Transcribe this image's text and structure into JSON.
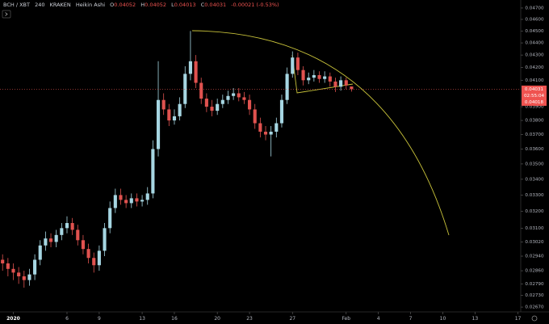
{
  "header": {
    "symbol": "BCH / XBT",
    "interval": "240",
    "exchange": "KRAKEN",
    "style": "Heikin Ashi",
    "ohlc": [
      {
        "label": "O",
        "value": "0.04052"
      },
      {
        "label": "H",
        "value": "0.04052"
      },
      {
        "label": "L",
        "value": "0.04013"
      },
      {
        "label": "C",
        "value": "0.04031"
      }
    ],
    "change": "-0.00021 (-0.53%)"
  },
  "chart_data": {
    "type": "candlestick",
    "log_scale": true,
    "up_color": "#a6d6e2",
    "down_color": "#e0524f",
    "annotation_color": "#c8c23a",
    "x": [
      0,
      0.5,
      1,
      1.5,
      2,
      2.5,
      3,
      3.5,
      4,
      4.5,
      5,
      5.5,
      6,
      6.5,
      7,
      7.5,
      8,
      8.5,
      9,
      9.5,
      10,
      10.5,
      11,
      11.5,
      12,
      12.5,
      13,
      13.5,
      14,
      14.5,
      15,
      15.5,
      16,
      16.5,
      17,
      17.5,
      18,
      18.5,
      19,
      19.5,
      20,
      20.5,
      21,
      21.5,
      22,
      22.5,
      23,
      23.5,
      24,
      24.5,
      25,
      25.5,
      26,
      26.5,
      27,
      27.5,
      28,
      28.5,
      29,
      29.5,
      30,
      30.5,
      31,
      31.5,
      32,
      32.5
    ],
    "open": [
      0.0292,
      0.029,
      0.0287,
      0.0285,
      0.0283,
      0.0281,
      0.0284,
      0.0292,
      0.03,
      0.0304,
      0.0302,
      0.0306,
      0.031,
      0.0313,
      0.0309,
      0.0303,
      0.0298,
      0.0293,
      0.0289,
      0.0297,
      0.031,
      0.0322,
      0.033,
      0.0327,
      0.0325,
      0.0328,
      0.0326,
      0.0327,
      0.0331,
      0.036,
      0.0395,
      0.0388,
      0.038,
      0.0383,
      0.0392,
      0.0415,
      0.0425,
      0.0408,
      0.0396,
      0.039,
      0.0387,
      0.0392,
      0.0395,
      0.0398,
      0.04,
      0.0397,
      0.0395,
      0.0388,
      0.0378,
      0.0372,
      0.037,
      0.0372,
      0.0378,
      0.0395,
      0.0415,
      0.0428,
      0.0418,
      0.041,
      0.0412,
      0.0414,
      0.0411,
      0.0413,
      0.0409,
      0.0405,
      0.041,
      0.04052
    ],
    "high": [
      0.0295,
      0.0293,
      0.029,
      0.0288,
      0.0286,
      0.0287,
      0.0295,
      0.0303,
      0.0308,
      0.0307,
      0.0309,
      0.0313,
      0.0317,
      0.0316,
      0.0312,
      0.0306,
      0.0301,
      0.0296,
      0.03,
      0.0313,
      0.0326,
      0.0334,
      0.0334,
      0.033,
      0.0331,
      0.0331,
      0.033,
      0.0335,
      0.0366,
      0.0425,
      0.04,
      0.0392,
      0.0388,
      0.0397,
      0.0421,
      0.045,
      0.043,
      0.0412,
      0.04,
      0.0395,
      0.0396,
      0.0399,
      0.0402,
      0.0404,
      0.0404,
      0.0401,
      0.0399,
      0.0392,
      0.0382,
      0.0376,
      0.0376,
      0.0382,
      0.0399,
      0.042,
      0.0433,
      0.0432,
      0.0421,
      0.0416,
      0.0418,
      0.0417,
      0.0417,
      0.0416,
      0.0412,
      0.0413,
      0.0412,
      0.04052
    ],
    "low": [
      0.0286,
      0.0283,
      0.0281,
      0.0279,
      0.0277,
      0.0278,
      0.0281,
      0.0289,
      0.0297,
      0.0299,
      0.0299,
      0.0303,
      0.0307,
      0.0306,
      0.03,
      0.0295,
      0.029,
      0.0285,
      0.0286,
      0.0294,
      0.0307,
      0.0319,
      0.0324,
      0.0322,
      0.0322,
      0.0323,
      0.0323,
      0.0324,
      0.0328,
      0.0355,
      0.0384,
      0.0376,
      0.0377,
      0.038,
      0.0389,
      0.041,
      0.0404,
      0.0392,
      0.0386,
      0.0383,
      0.0384,
      0.0389,
      0.0392,
      0.0395,
      0.0394,
      0.0392,
      0.0384,
      0.0374,
      0.0368,
      0.0366,
      0.0355,
      0.0368,
      0.0375,
      0.0392,
      0.0412,
      0.0414,
      0.0406,
      0.0407,
      0.0409,
      0.0408,
      0.0408,
      0.0405,
      0.0401,
      0.0402,
      0.0403,
      0.04013
    ],
    "close": [
      0.029,
      0.0287,
      0.0285,
      0.0283,
      0.0281,
      0.0284,
      0.0292,
      0.03,
      0.0304,
      0.0302,
      0.0306,
      0.031,
      0.0313,
      0.0309,
      0.0303,
      0.0298,
      0.0293,
      0.0289,
      0.0297,
      0.031,
      0.0322,
      0.033,
      0.0327,
      0.0325,
      0.0328,
      0.0326,
      0.0327,
      0.0331,
      0.036,
      0.0395,
      0.0388,
      0.038,
      0.0383,
      0.0392,
      0.0415,
      0.0425,
      0.0408,
      0.0396,
      0.039,
      0.0387,
      0.0392,
      0.0395,
      0.0398,
      0.04,
      0.0397,
      0.0395,
      0.0388,
      0.0378,
      0.0372,
      0.037,
      0.0372,
      0.0378,
      0.0395,
      0.0415,
      0.0428,
      0.0418,
      0.041,
      0.0412,
      0.0414,
      0.0411,
      0.0413,
      0.0409,
      0.0405,
      0.041,
      0.0406,
      0.04031
    ],
    "xlim": [
      -0.24,
      48.26
    ],
    "xticks": [
      {
        "value": 1,
        "label": "2020"
      },
      6,
      9,
      13,
      16,
      20,
      23,
      27,
      {
        "value": 32,
        "label": "Feb"
      },
      {
        "value": 35,
        "label": "4"
      },
      {
        "value": 38,
        "label": "7"
      },
      {
        "value": 41,
        "label": "10"
      },
      {
        "value": 44,
        "label": "13"
      },
      {
        "value": 48,
        "label": "17"
      }
    ],
    "ylim": [
      0.0265,
      0.0475
    ],
    "yticks": [
      {
        "value": 0.047,
        "label": "0.04700"
      },
      {
        "value": 0.046,
        "label": "0.04600"
      },
      {
        "value": 0.045,
        "label": "0.04500"
      },
      {
        "value": 0.044,
        "label": "0.04400"
      },
      {
        "value": 0.043,
        "label": "0.04300"
      },
      {
        "value": 0.042,
        "label": "0.04200"
      },
      {
        "value": 0.041,
        "label": "0.04100"
      },
      {
        "value": 0.039,
        "label": "0.03900"
      },
      {
        "value": 0.038,
        "label": "0.03800"
      },
      {
        "value": 0.037,
        "label": "0.03700"
      },
      {
        "value": 0.036,
        "label": "0.03600"
      },
      {
        "value": 0.035,
        "label": "0.03500"
      },
      {
        "value": 0.034,
        "label": "0.03400"
      },
      {
        "value": 0.033,
        "label": "0.03300"
      },
      {
        "value": 0.032,
        "label": "0.03200"
      },
      {
        "value": 0.031,
        "label": "0.03100"
      },
      {
        "value": 0.0302,
        "label": "0.03020"
      },
      {
        "value": 0.0294,
        "label": "0.02940"
      },
      {
        "value": 0.0286,
        "label": "0.02860"
      },
      {
        "value": 0.0279,
        "label": "0.02790"
      },
      {
        "value": 0.0273,
        "label": "0.02730"
      },
      {
        "value": 0.0267,
        "label": "0.02670"
      }
    ],
    "price_labels": [
      {
        "value": 0.04031,
        "label": "0.04031"
      },
      {
        "value": 0.04018,
        "label": "0.04018"
      }
    ],
    "countdown": "02:55:04"
  }
}
